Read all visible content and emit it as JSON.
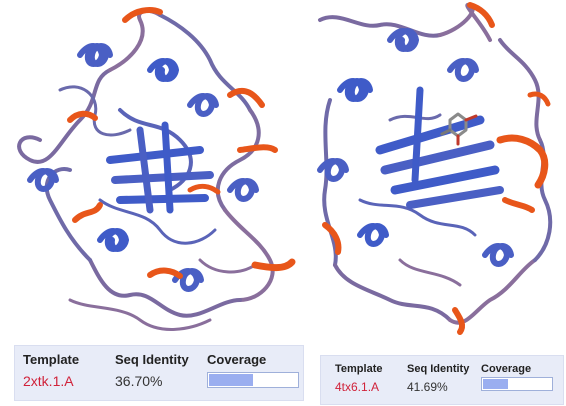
{
  "comparisons": [
    {
      "template_header": "Template",
      "identity_header": "Seq Identity",
      "coverage_header": "Coverage",
      "template_id": "2xtk.1.A",
      "seq_identity": "36.70%",
      "coverage_fraction": 0.5
    },
    {
      "template_header": "Template",
      "identity_header": "Seq Identity",
      "coverage_header": "Coverage",
      "template_id": "4tx6.1.A",
      "seq_identity": "41.69%",
      "coverage_fraction": 0.37
    }
  ],
  "colors": {
    "helix_blue": "#4a5fc4",
    "mid_purple": "#8a6f9c",
    "strand_orange": "#e8561a",
    "template_red": "#d0223a",
    "coverage_fill": "#9aaef0",
    "card_bg": "#e8ecf8"
  }
}
